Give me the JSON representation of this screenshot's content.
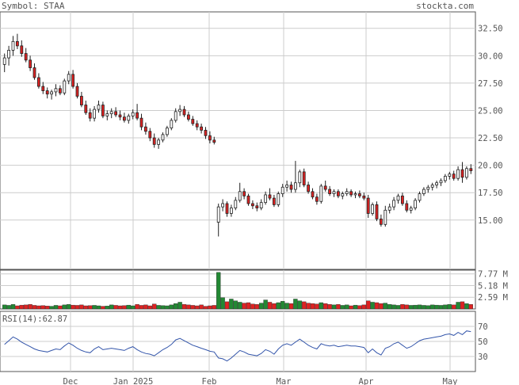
{
  "header": {
    "symbol_label": "Symbol: STAA",
    "site": "stockta.com"
  },
  "rsi_label": "RSI(14):62.87",
  "chart_data": [
    {
      "type": "candlestick",
      "title": "",
      "ylim": [
        10.5,
        34.0
      ],
      "yticks": [
        "32.50",
        "30.00",
        "27.50",
        "25.00",
        "22.50",
        "20.00",
        "17.50",
        "15.00"
      ],
      "xticks": [
        "Dec",
        "Jan 2025",
        "Feb",
        "Mar",
        "Apr",
        "May"
      ],
      "grid": true,
      "up_color": "#ffffff",
      "down_color": "#dd2222",
      "ohlc": [
        [
          29.2,
          30.2,
          28.5,
          29.8
        ],
        [
          29.8,
          30.9,
          29.1,
          30.5
        ],
        [
          30.5,
          31.8,
          30.0,
          31.3
        ],
        [
          31.3,
          32.0,
          30.6,
          30.9
        ],
        [
          30.9,
          31.4,
          29.9,
          30.2
        ],
        [
          30.2,
          30.7,
          29.4,
          29.6
        ],
        [
          29.6,
          30.0,
          28.6,
          28.9
        ],
        [
          28.9,
          29.3,
          27.8,
          28.0
        ],
        [
          28.0,
          28.4,
          27.0,
          27.2
        ],
        [
          27.2,
          27.6,
          26.5,
          26.8
        ],
        [
          26.8,
          27.1,
          26.1,
          26.5
        ],
        [
          26.5,
          26.9,
          26.0,
          26.7
        ],
        [
          26.7,
          27.4,
          26.3,
          27.0
        ],
        [
          27.0,
          27.3,
          26.4,
          26.6
        ],
        [
          26.6,
          27.9,
          26.4,
          27.7
        ],
        [
          27.7,
          28.6,
          27.4,
          28.3
        ],
        [
          28.3,
          28.7,
          27.0,
          27.2
        ],
        [
          27.2,
          27.5,
          26.1,
          26.3
        ],
        [
          26.3,
          26.7,
          25.3,
          25.5
        ],
        [
          25.5,
          25.9,
          24.6,
          24.8
        ],
        [
          24.8,
          25.2,
          24.0,
          24.3
        ],
        [
          24.3,
          25.4,
          24.0,
          25.1
        ],
        [
          25.1,
          25.9,
          24.8,
          25.5
        ],
        [
          25.5,
          25.8,
          24.3,
          24.5
        ],
        [
          24.5,
          25.0,
          24.1,
          24.7
        ],
        [
          24.7,
          25.2,
          24.3,
          24.9
        ],
        [
          24.9,
          25.3,
          24.4,
          24.6
        ],
        [
          24.6,
          25.0,
          24.1,
          24.4
        ],
        [
          24.4,
          24.8,
          23.9,
          24.1
        ],
        [
          24.1,
          24.7,
          23.8,
          24.5
        ],
        [
          24.5,
          25.1,
          24.2,
          24.8
        ],
        [
          24.8,
          25.6,
          24.1,
          24.3
        ],
        [
          24.3,
          24.7,
          23.2,
          23.5
        ],
        [
          23.5,
          23.9,
          22.8,
          23.1
        ],
        [
          23.1,
          23.4,
          22.2,
          22.5
        ],
        [
          22.5,
          22.9,
          21.6,
          21.9
        ],
        [
          21.9,
          22.5,
          21.5,
          22.3
        ],
        [
          22.3,
          23.0,
          22.1,
          22.8
        ],
        [
          22.8,
          23.6,
          22.6,
          23.4
        ],
        [
          23.4,
          24.3,
          23.2,
          24.1
        ],
        [
          24.1,
          25.2,
          23.9,
          24.9
        ],
        [
          24.9,
          25.5,
          24.5,
          25.1
        ],
        [
          25.1,
          25.4,
          24.4,
          24.6
        ],
        [
          24.6,
          24.9,
          24.0,
          24.2
        ],
        [
          24.2,
          24.5,
          23.6,
          23.8
        ],
        [
          23.8,
          24.1,
          23.2,
          23.5
        ],
        [
          23.5,
          23.8,
          22.9,
          23.2
        ],
        [
          23.2,
          23.5,
          22.4,
          22.7
        ],
        [
          22.7,
          23.1,
          22.0,
          22.3
        ],
        [
          22.3,
          22.6,
          21.9,
          22.1
        ],
        [
          14.8,
          16.5,
          13.5,
          16.2
        ],
        [
          16.2,
          16.9,
          15.8,
          16.5
        ],
        [
          16.5,
          16.7,
          15.3,
          15.6
        ],
        [
          15.6,
          16.4,
          15.3,
          16.1
        ],
        [
          16.1,
          17.1,
          15.9,
          16.8
        ],
        [
          16.8,
          18.4,
          16.6,
          17.6
        ],
        [
          17.6,
          17.9,
          16.9,
          17.2
        ],
        [
          17.2,
          17.4,
          16.3,
          16.5
        ],
        [
          16.5,
          16.8,
          16.0,
          16.3
        ],
        [
          16.3,
          16.6,
          15.8,
          16.1
        ],
        [
          16.1,
          16.9,
          15.9,
          16.6
        ],
        [
          16.6,
          17.6,
          16.4,
          17.3
        ],
        [
          17.3,
          17.9,
          16.8,
          17.0
        ],
        [
          17.0,
          17.3,
          16.2,
          16.4
        ],
        [
          16.4,
          17.6,
          16.2,
          17.4
        ],
        [
          17.4,
          18.3,
          17.1,
          18.0
        ],
        [
          18.0,
          18.6,
          17.6,
          18.2
        ],
        [
          18.2,
          18.5,
          17.5,
          17.8
        ],
        [
          17.8,
          20.4,
          17.5,
          18.4
        ],
        [
          18.4,
          19.6,
          18.0,
          19.4
        ],
        [
          19.4,
          19.7,
          18.0,
          18.2
        ],
        [
          18.2,
          18.5,
          17.4,
          17.6
        ],
        [
          17.6,
          17.9,
          16.9,
          17.1
        ],
        [
          17.1,
          17.4,
          16.4,
          16.7
        ],
        [
          16.7,
          18.3,
          16.5,
          18.1
        ],
        [
          18.1,
          18.6,
          17.6,
          17.8
        ],
        [
          17.8,
          18.1,
          17.2,
          17.4
        ],
        [
          17.4,
          17.8,
          17.1,
          17.6
        ],
        [
          17.6,
          17.8,
          17.0,
          17.2
        ],
        [
          17.2,
          17.6,
          16.9,
          17.4
        ],
        [
          17.4,
          17.9,
          17.2,
          17.6
        ],
        [
          17.6,
          17.8,
          17.1,
          17.3
        ],
        [
          17.3,
          17.6,
          17.0,
          17.4
        ],
        [
          17.4,
          17.7,
          17.0,
          17.2
        ],
        [
          17.2,
          17.5,
          16.8,
          17.0
        ],
        [
          17.0,
          17.3,
          15.2,
          15.6
        ],
        [
          15.6,
          16.6,
          15.4,
          16.4
        ],
        [
          16.4,
          16.7,
          14.9,
          15.1
        ],
        [
          15.1,
          15.5,
          14.4,
          14.6
        ],
        [
          14.6,
          16.3,
          14.4,
          15.9
        ],
        [
          15.9,
          16.5,
          15.6,
          16.2
        ],
        [
          16.2,
          17.1,
          15.9,
          16.8
        ],
        [
          16.8,
          17.4,
          16.5,
          17.2
        ],
        [
          17.2,
          17.5,
          16.3,
          16.5
        ],
        [
          16.5,
          16.8,
          15.7,
          15.9
        ],
        [
          15.9,
          16.3,
          15.6,
          16.1
        ],
        [
          16.1,
          17.0,
          15.9,
          16.8
        ],
        [
          16.8,
          17.6,
          16.6,
          17.4
        ],
        [
          17.4,
          18.0,
          17.2,
          17.8
        ],
        [
          17.8,
          18.2,
          17.5,
          18.0
        ],
        [
          18.0,
          18.4,
          17.7,
          18.2
        ],
        [
          18.2,
          18.6,
          17.9,
          18.4
        ],
        [
          18.4,
          18.8,
          18.1,
          18.6
        ],
        [
          18.6,
          19.2,
          18.4,
          19.0
        ],
        [
          19.0,
          19.4,
          18.7,
          19.2
        ],
        [
          19.2,
          19.5,
          18.6,
          18.8
        ],
        [
          18.8,
          19.9,
          18.6,
          19.6
        ],
        [
          19.6,
          20.3,
          18.4,
          18.9
        ],
        [
          18.9,
          19.9,
          18.7,
          19.7
        ],
        [
          19.7,
          20.1,
          19.2,
          19.5
        ]
      ]
    },
    {
      "type": "bar",
      "title": "",
      "ylim": [
        0,
        8.6
      ],
      "yticks": [
        "7.77 M",
        "5.18 M",
        "2.59 M"
      ],
      "up_color": "#228833",
      "down_color": "#dd2222",
      "values": [
        0.9,
        0.8,
        1.0,
        0.7,
        0.85,
        0.9,
        1.0,
        0.8,
        0.7,
        0.75,
        0.65,
        0.6,
        0.8,
        0.7,
        0.9,
        1.0,
        0.85,
        0.8,
        0.9,
        0.7,
        0.75,
        0.8,
        0.7,
        0.6,
        0.65,
        0.9,
        0.8,
        0.7,
        0.75,
        0.85,
        0.7,
        1.0,
        0.8,
        0.9,
        0.7,
        1.1,
        0.8,
        0.75,
        0.7,
        0.9,
        1.2,
        1.5,
        1.0,
        0.9,
        0.8,
        0.7,
        0.9,
        0.6,
        0.7,
        0.8,
        8.1,
        2.5,
        1.6,
        2.2,
        1.8,
        1.5,
        1.3,
        1.4,
        1.1,
        1.0,
        1.3,
        2.0,
        1.5,
        1.2,
        1.4,
        1.7,
        1.3,
        1.2,
        2.2,
        1.8,
        1.6,
        1.3,
        1.2,
        1.1,
        1.4,
        1.2,
        1.0,
        0.9,
        1.0,
        0.8,
        0.9,
        0.7,
        0.85,
        0.75,
        0.9,
        1.8,
        1.5,
        1.4,
        1.2,
        1.3,
        1.0,
        0.9,
        0.8,
        1.0,
        0.9,
        0.8,
        0.85,
        0.9,
        0.8,
        0.75,
        0.9,
        0.85,
        0.8,
        0.9,
        1.0,
        0.9,
        1.5,
        1.6,
        1.2,
        1.0
      ]
    },
    {
      "type": "line",
      "title": "",
      "ylim": [
        10,
        90
      ],
      "yticks": [
        "70",
        "50",
        "30"
      ],
      "series_color": "#3355aa",
      "values": [
        46,
        51,
        56,
        53,
        49,
        46,
        43,
        40,
        38,
        37,
        36,
        38,
        40,
        39,
        44,
        48,
        45,
        41,
        38,
        36,
        35,
        40,
        43,
        39,
        40,
        41,
        40,
        39,
        38,
        41,
        43,
        39,
        36,
        34,
        33,
        31,
        35,
        39,
        42,
        46,
        52,
        54,
        51,
        48,
        45,
        43,
        41,
        39,
        37,
        36,
        28,
        27,
        24,
        28,
        33,
        38,
        36,
        33,
        32,
        31,
        34,
        39,
        37,
        33,
        40,
        45,
        47,
        45,
        49,
        53,
        49,
        45,
        42,
        40,
        47,
        45,
        44,
        45,
        43,
        44,
        45,
        44,
        44,
        43,
        42,
        35,
        40,
        35,
        32,
        41,
        43,
        47,
        49,
        45,
        41,
        43,
        47,
        51,
        53,
        54,
        55,
        56,
        57,
        59,
        60,
        58,
        62,
        59,
        64,
        63
      ]
    }
  ]
}
